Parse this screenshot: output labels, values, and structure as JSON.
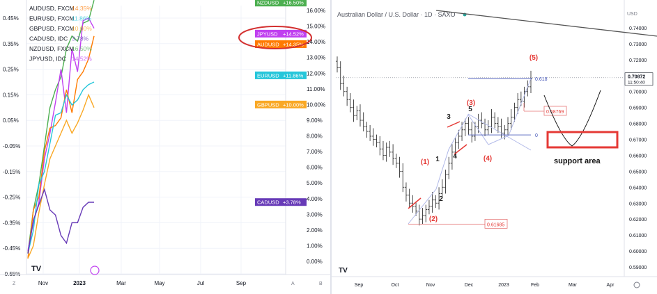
{
  "chart_data": [
    {
      "type": "line",
      "title": "",
      "legend": [
        {
          "name": "AUDUSD, FXCM",
          "value": "14.35%",
          "color": "#ff7a00"
        },
        {
          "name": "EURUSD, FXCM",
          "value": "11.86%",
          "color": "#26c6da"
        },
        {
          "name": "GBPUSD, FXCM",
          "value": "10.00%",
          "color": "#f9a825"
        },
        {
          "name": "CADUSD, IDC",
          "value": "3.78%",
          "color": "#673ab7"
        },
        {
          "name": "NZDUSD, FXCM",
          "value": "16.50%",
          "color": "#4caf50"
        },
        {
          "name": "JPYUSD, IDC",
          "value": "14.52%",
          "color": "#c040f0"
        }
      ],
      "left_axis_ticks": [
        "0.45%",
        "0.35%",
        "0.25%",
        "0.15%",
        "0.05%",
        "-0.05%",
        "-0.15%",
        "-0.25%",
        "-0.35%",
        "-0.45%",
        "-0.55%"
      ],
      "right_axis_ticks": [
        "16.00%",
        "15.00%",
        "14.00%",
        "13.00%",
        "12.00%",
        "11.00%",
        "10.00%",
        "9.00%",
        "8.00%",
        "7.00%",
        "6.00%",
        "5.00%",
        "4.00%",
        "3.00%",
        "2.00%",
        "1.00%",
        "0.00%"
      ],
      "x_ticks": [
        "Nov",
        "2023",
        "Mar",
        "May",
        "Jul",
        "Sep"
      ],
      "axis_letters": [
        "Z",
        "A",
        "B"
      ],
      "price_labels": [
        {
          "name": "NZDUSD",
          "value": "+16.50%",
          "color": "#4caf50",
          "level": 16.5
        },
        {
          "name": "JPYUSD",
          "value": "+14.52%",
          "color": "#c040f0",
          "level": 14.52
        },
        {
          "name": "AUDUSD",
          "value": "+14.35%",
          "color": "#ff7a00",
          "level": 13.85
        },
        {
          "name": "EURUSD",
          "value": "+11.86%",
          "color": "#26c6da",
          "level": 11.86
        },
        {
          "name": "GBPUSD",
          "value": "+10.00%",
          "color": "#f9a825",
          "level": 10.0
        },
        {
          "name": "CADUSD",
          "value": "+3.78%",
          "color": "#673ab7",
          "level": 3.78
        }
      ],
      "series": [
        {
          "name": "NZDUSD",
          "color": "#4caf50",
          "values": [
            -0.47,
            -0.3,
            -0.2,
            -0.05,
            0.1,
            0.17,
            0.22,
            0.33,
            0.38,
            0.36,
            0.43,
            0.44,
            0.52
          ]
        },
        {
          "name": "JPYUSD",
          "color": "#c040f0",
          "values": [
            -0.46,
            -0.35,
            -0.27,
            -0.1,
            0.0,
            0.12,
            0.25,
            0.08,
            0.33,
            0.24,
            0.44,
            0.45,
            0.41
          ]
        },
        {
          "name": "AUDUSD",
          "color": "#ff7a00",
          "values": [
            -0.49,
            -0.3,
            -0.25,
            -0.07,
            0.02,
            0.03,
            0.06,
            0.17,
            0.08,
            0.21,
            0.24,
            0.29,
            0.38
          ]
        },
        {
          "name": "EURUSD",
          "color": "#26c6da",
          "values": [
            -0.47,
            -0.38,
            -0.2,
            -0.15,
            -0.04,
            0.07,
            0.08,
            0.15,
            0.11,
            0.13,
            0.17,
            0.19,
            0.2
          ]
        },
        {
          "name": "GBPUSD",
          "color": "#f9a825",
          "values": [
            -0.49,
            -0.44,
            -0.31,
            -0.2,
            -0.1,
            -0.05,
            0.0,
            0.05,
            0.0,
            0.04,
            0.09,
            0.15,
            0.1
          ]
        },
        {
          "name": "CADUSD",
          "color": "#673ab7",
          "values": [
            -0.47,
            -0.34,
            -0.28,
            -0.22,
            -0.3,
            -0.32,
            -0.4,
            -0.43,
            -0.35,
            -0.35,
            -0.29,
            -0.27,
            -0.27
          ]
        }
      ],
      "logo": "TV"
    },
    {
      "type": "candlestick",
      "title": "Australian Dollar / U.S. Dollar · 1D · SAXO",
      "currency": "USD",
      "y_ticks": [
        "0.74000",
        "0.73000",
        "0.72000",
        "0.71000",
        "0.70000",
        "0.69000",
        "0.68000",
        "0.67000",
        "0.66000",
        "0.65000",
        "0.64000",
        "0.63000",
        "0.62000",
        "0.61000",
        "0.60000",
        "0.59000"
      ],
      "ylim": [
        0.585,
        0.752
      ],
      "x_ticks": [
        "Sep",
        "Oct",
        "Nov",
        "Dec",
        "2023",
        "Feb",
        "Mar",
        "Apr"
      ],
      "current_price": "0.70872",
      "current_time": "11:50:40",
      "fib_labels": [
        {
          "text": "0.618",
          "price": 0.7082
        },
        {
          "text": "0.68769",
          "price": 0.68769
        },
        {
          "text": "0.61685",
          "price": 0.61685
        },
        {
          "text": "0",
          "price": 0.6728
        }
      ],
      "wave_labels": [
        {
          "text": "(5)",
          "color": "#e53935"
        },
        {
          "text": "(3)",
          "color": "#e53935"
        },
        {
          "text": "(1)",
          "color": "#e53935"
        },
        {
          "text": "(2)",
          "color": "#e53935"
        },
        {
          "text": "(4)",
          "color": "#e53935"
        },
        {
          "text": "3",
          "color": "#222222"
        },
        {
          "text": "5",
          "color": "#222222"
        },
        {
          "text": "1",
          "color": "#222222"
        },
        {
          "text": "2",
          "color": "#222222"
        },
        {
          "text": "4",
          "color": "#222222"
        }
      ],
      "annotation": "support area",
      "closes": [
        0.715,
        0.705,
        0.7,
        0.695,
        0.69,
        0.685,
        0.688,
        0.682,
        0.678,
        0.675,
        0.672,
        0.67,
        0.668,
        0.664,
        0.66,
        0.665,
        0.662,
        0.658,
        0.655,
        0.65,
        0.64,
        0.635,
        0.63,
        0.628,
        0.625,
        0.62,
        0.622,
        0.626,
        0.628,
        0.632,
        0.63,
        0.636,
        0.64,
        0.648,
        0.655,
        0.662,
        0.668,
        0.672,
        0.676,
        0.68,
        0.676,
        0.672,
        0.678,
        0.682,
        0.68,
        0.676,
        0.678,
        0.684,
        0.68,
        0.678,
        0.674,
        0.676,
        0.68,
        0.684,
        0.69,
        0.695,
        0.694,
        0.7,
        0.703,
        0.708
      ]
    }
  ]
}
